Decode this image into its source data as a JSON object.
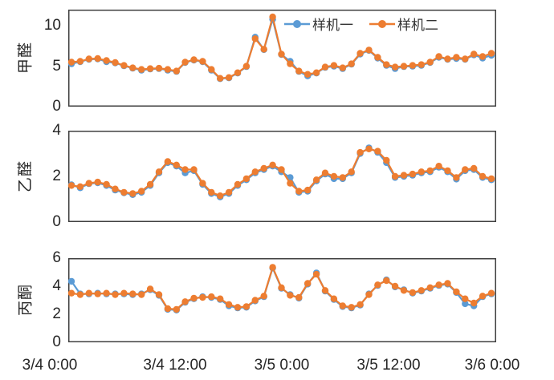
{
  "legend": {
    "items": [
      {
        "label": "样机一",
        "color": "#5B9BD5"
      },
      {
        "label": "样机二",
        "color": "#ED7D31"
      }
    ]
  },
  "colors": {
    "axis": "#3f3f3f",
    "text": "#262626",
    "series1": "#5B9BD5",
    "series2": "#ED7D31"
  },
  "x_axis": {
    "tick_labels": [
      "3/4 0:00",
      "3/4 12:00",
      "3/5 0:00",
      "3/5 12:00",
      "3/6 0:00"
    ]
  },
  "chart_data": [
    {
      "type": "line",
      "ylabel": "甲醛",
      "xlabel": "",
      "ylim": [
        0,
        12
      ],
      "yticks": [
        0,
        5,
        10
      ],
      "grid": false,
      "legend_position": "top-right-inside",
      "series": [
        {
          "name": "样机一",
          "color": "#5B9BD5",
          "values": [
            5.3,
            5.55,
            5.85,
            5.9,
            5.55,
            5.4,
            5.05,
            4.75,
            4.5,
            4.65,
            4.7,
            4.5,
            4.35,
            5.45,
            5.75,
            5.55,
            4.5,
            3.45,
            3.55,
            4.15,
            4.95,
            8.6,
            7.05,
            10.8,
            6.45,
            5.6,
            4.35,
            3.8,
            4.15,
            4.85,
            5.0,
            4.7,
            5.25,
            6.5,
            6.95,
            6.0,
            5.1,
            4.7,
            4.95,
            5.0,
            5.1,
            5.45,
            6.1,
            5.85,
            5.95,
            5.85,
            6.4,
            6.0,
            6.35
          ]
        },
        {
          "name": "样机二",
          "color": "#ED7D31",
          "values": [
            5.5,
            5.6,
            5.9,
            5.95,
            5.7,
            5.45,
            5.1,
            4.8,
            4.6,
            4.7,
            4.75,
            4.6,
            4.4,
            5.5,
            5.8,
            5.6,
            4.6,
            3.5,
            3.6,
            4.2,
            5.0,
            8.4,
            7.1,
            11.1,
            6.5,
            5.3,
            4.4,
            4.0,
            4.2,
            4.9,
            5.1,
            4.8,
            5.3,
            6.6,
            7.0,
            6.1,
            5.2,
            4.9,
            5.0,
            5.1,
            5.2,
            5.5,
            6.2,
            5.9,
            6.1,
            5.9,
            6.5,
            6.2,
            6.6
          ]
        }
      ]
    },
    {
      "type": "line",
      "ylabel": "乙醛",
      "xlabel": "",
      "ylim": [
        0,
        4
      ],
      "yticks": [
        0,
        2,
        4
      ],
      "grid": false,
      "series": [
        {
          "name": "样机一",
          "color": "#5B9BD5",
          "values": [
            1.63,
            1.5,
            1.68,
            1.72,
            1.6,
            1.4,
            1.28,
            1.2,
            1.3,
            1.6,
            2.15,
            2.6,
            2.45,
            2.15,
            2.25,
            1.65,
            1.25,
            1.1,
            1.25,
            1.6,
            1.85,
            2.15,
            2.3,
            2.45,
            2.2,
            1.95,
            1.3,
            1.35,
            1.8,
            2.1,
            1.9,
            1.9,
            2.15,
            3.0,
            3.25,
            3.05,
            2.6,
            1.95,
            2.0,
            2.05,
            2.15,
            2.2,
            2.4,
            2.2,
            1.88,
            2.25,
            2.3,
            1.95,
            1.85
          ]
        },
        {
          "name": "样机二",
          "color": "#ED7D31",
          "values": [
            1.6,
            1.55,
            1.7,
            1.75,
            1.65,
            1.45,
            1.3,
            1.25,
            1.35,
            1.65,
            2.2,
            2.65,
            2.5,
            2.3,
            2.3,
            1.7,
            1.3,
            1.15,
            1.3,
            1.65,
            1.9,
            2.2,
            2.35,
            2.5,
            2.3,
            1.7,
            1.35,
            1.4,
            1.85,
            2.15,
            2.0,
            1.95,
            2.2,
            3.05,
            3.2,
            3.1,
            2.7,
            2.0,
            2.05,
            2.1,
            2.2,
            2.25,
            2.45,
            2.25,
            1.95,
            2.3,
            2.35,
            2.0,
            1.9
          ]
        }
      ]
    },
    {
      "type": "line",
      "ylabel": "丙酮",
      "xlabel": "",
      "ylim": [
        0,
        6
      ],
      "yticks": [
        0,
        2,
        4,
        6
      ],
      "grid": false,
      "series": [
        {
          "name": "样机一",
          "color": "#5B9BD5",
          "values": [
            4.35,
            3.45,
            3.45,
            3.5,
            3.45,
            3.45,
            3.45,
            3.4,
            3.45,
            3.75,
            3.35,
            2.35,
            2.3,
            2.85,
            3.1,
            3.25,
            3.2,
            3.05,
            2.6,
            2.45,
            2.5,
            2.95,
            3.25,
            5.3,
            3.85,
            3.4,
            3.15,
            4.15,
            4.95,
            3.65,
            3.05,
            2.55,
            2.45,
            2.65,
            3.45,
            4.05,
            4.45,
            3.95,
            3.75,
            3.5,
            3.65,
            3.85,
            4.05,
            4.15,
            3.55,
            2.75,
            2.6,
            3.25,
            3.45
          ]
        },
        {
          "name": "样机二",
          "color": "#ED7D31",
          "values": [
            3.5,
            3.4,
            3.5,
            3.45,
            3.5,
            3.4,
            3.5,
            3.45,
            3.4,
            3.8,
            3.4,
            2.4,
            2.35,
            2.9,
            3.15,
            3.2,
            3.25,
            3.1,
            2.7,
            2.5,
            2.55,
            3.0,
            3.3,
            5.35,
            3.9,
            3.35,
            3.2,
            4.2,
            4.85,
            3.7,
            3.1,
            2.6,
            2.5,
            2.7,
            3.4,
            4.1,
            4.4,
            4.0,
            3.7,
            3.55,
            3.7,
            3.9,
            4.1,
            4.2,
            3.6,
            3.1,
            2.8,
            3.3,
            3.5
          ]
        }
      ]
    }
  ]
}
